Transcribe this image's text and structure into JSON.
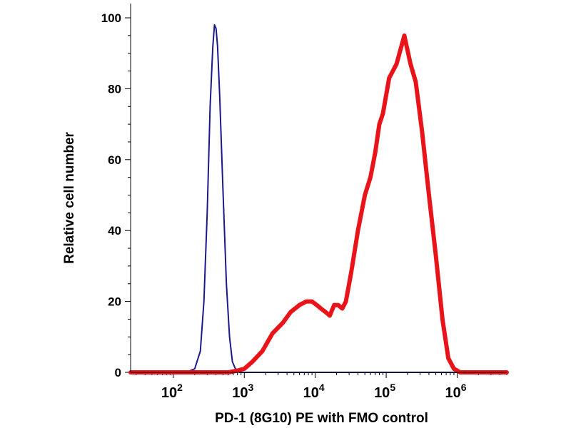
{
  "chart_data": {
    "type": "line",
    "title": "",
    "xlabel": "PD-1 (8G10) PE with FMO control",
    "ylabel": "Relative cell number",
    "x_scale": "log",
    "xlim": [
      25,
      5000000
    ],
    "ylim": [
      0,
      100
    ],
    "x_ticks": [
      {
        "value": 100,
        "base": "10",
        "exp": "2"
      },
      {
        "value": 1000,
        "base": "10",
        "exp": "3"
      },
      {
        "value": 10000,
        "base": "10",
        "exp": "4"
      },
      {
        "value": 100000,
        "base": "10",
        "exp": "5"
      },
      {
        "value": 1000000,
        "base": "10",
        "exp": "6"
      }
    ],
    "y_ticks": [
      {
        "value": 0,
        "label": "0"
      },
      {
        "value": 20,
        "label": "20"
      },
      {
        "value": 40,
        "label": "40"
      },
      {
        "value": 60,
        "label": "60"
      },
      {
        "value": 80,
        "label": "80"
      },
      {
        "value": 100,
        "label": "100"
      }
    ],
    "grid": false,
    "series": [
      {
        "color": "#1a1a8c",
        "points": [
          [
            25,
            0
          ],
          [
            150,
            0
          ],
          [
            200,
            1
          ],
          [
            240,
            6
          ],
          [
            270,
            20
          ],
          [
            300,
            45
          ],
          [
            330,
            75
          ],
          [
            360,
            92
          ],
          [
            380,
            98
          ],
          [
            400,
            97
          ],
          [
            420,
            92
          ],
          [
            450,
            78
          ],
          [
            500,
            52
          ],
          [
            560,
            25
          ],
          [
            620,
            10
          ],
          [
            680,
            3
          ],
          [
            750,
            1
          ],
          [
            850,
            0
          ],
          [
            5000000,
            0
          ]
        ]
      },
      {
        "color": "#e8141a",
        "points": [
          [
            25,
            0
          ],
          [
            600,
            0
          ],
          [
            800,
            0.5
          ],
          [
            1000,
            1
          ],
          [
            1300,
            3
          ],
          [
            1800,
            6
          ],
          [
            2500,
            11
          ],
          [
            3500,
            14
          ],
          [
            4500,
            17
          ],
          [
            6000,
            19
          ],
          [
            7500,
            20
          ],
          [
            9000,
            20
          ],
          [
            10500,
            19
          ],
          [
            12000,
            18
          ],
          [
            14000,
            17
          ],
          [
            16000,
            16
          ],
          [
            18500,
            19
          ],
          [
            21000,
            19
          ],
          [
            24000,
            18
          ],
          [
            27000,
            20
          ],
          [
            32000,
            28
          ],
          [
            40000,
            40
          ],
          [
            50000,
            50
          ],
          [
            60000,
            55
          ],
          [
            70000,
            62
          ],
          [
            80000,
            70
          ],
          [
            90000,
            73
          ],
          [
            110000,
            83
          ],
          [
            140000,
            87
          ],
          [
            180000,
            95
          ],
          [
            220000,
            87
          ],
          [
            260000,
            82
          ],
          [
            320000,
            68
          ],
          [
            400000,
            50
          ],
          [
            500000,
            33
          ],
          [
            620000,
            15
          ],
          [
            750000,
            4
          ],
          [
            900000,
            1
          ],
          [
            1100000,
            0
          ],
          [
            5000000,
            0
          ]
        ]
      }
    ]
  }
}
